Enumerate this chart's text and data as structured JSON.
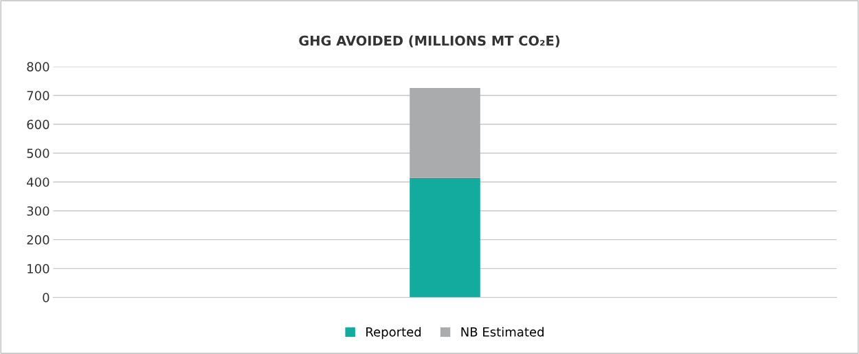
{
  "chart_data": {
    "type": "bar",
    "title": "GHG AVOIDED (MILLIONS MT CO₂E)",
    "categories": [
      null
    ],
    "stacked": true,
    "series": [
      {
        "name": "Reported",
        "color": "#12ab9e",
        "values": [
          414
        ]
      },
      {
        "name": "NB Estimated",
        "color": "#aaabad",
        "values": [
          312
        ]
      }
    ],
    "ylim": [
      0,
      800
    ],
    "yticks": [
      0,
      100,
      200,
      300,
      400,
      500,
      600,
      700,
      800
    ],
    "grid": "y",
    "legend": "bottom"
  }
}
